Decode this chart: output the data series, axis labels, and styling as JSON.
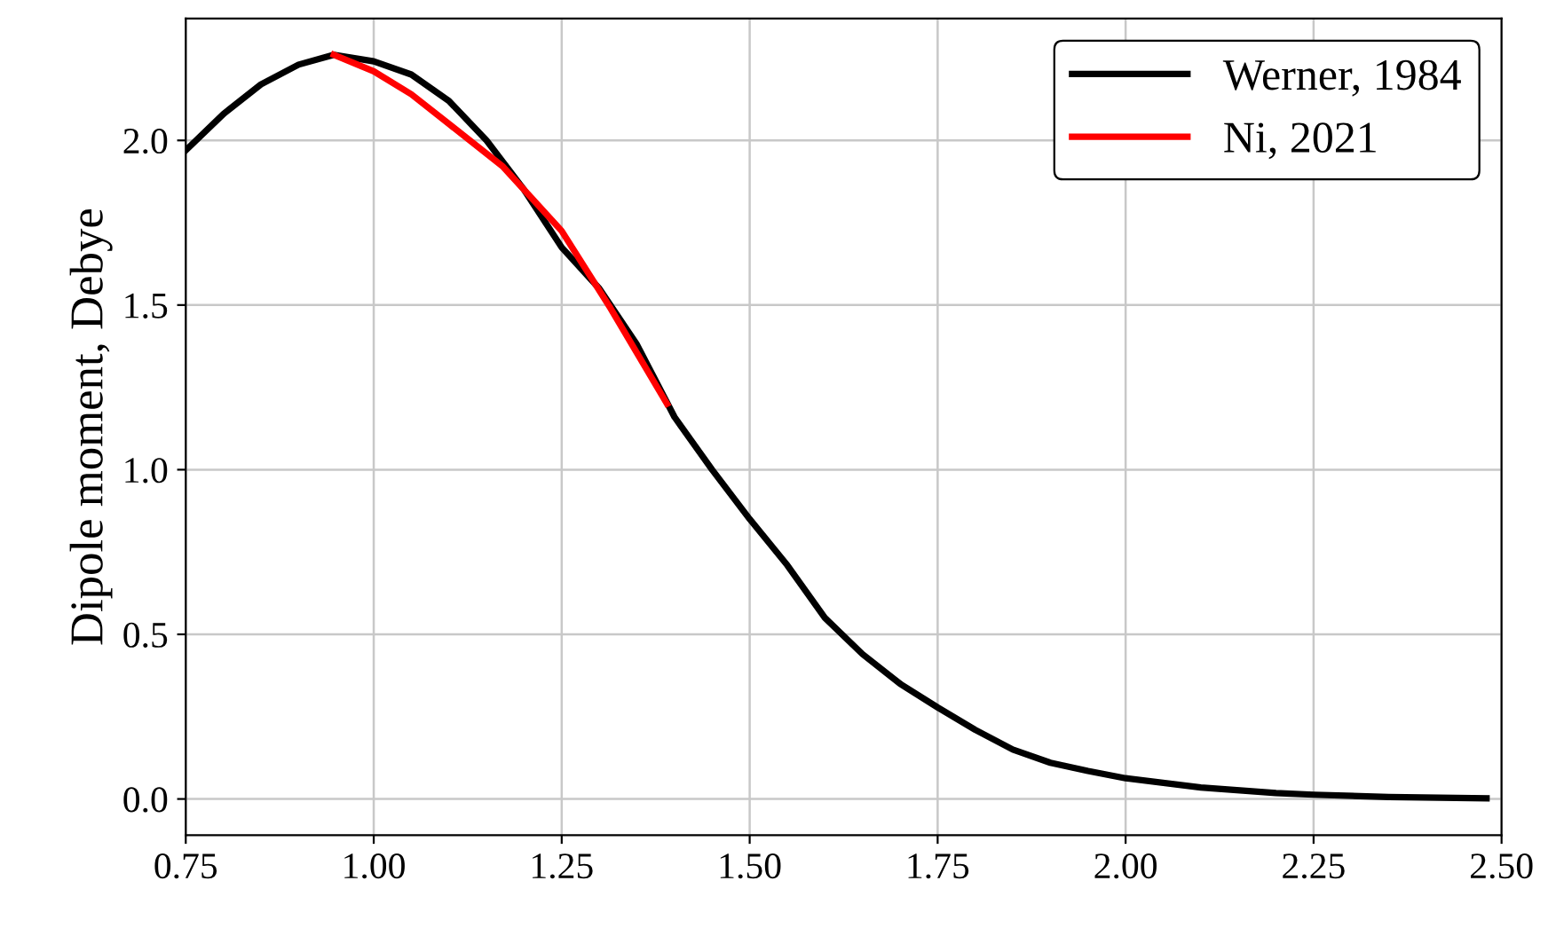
{
  "chart_data": {
    "type": "line",
    "ylabel": "Dipole moment, Debye",
    "xlim": [
      0.75,
      2.5
    ],
    "xticks": [
      {
        "value": 0.75,
        "label": "0.75"
      },
      {
        "value": 1.0,
        "label": "1.00"
      },
      {
        "value": 1.25,
        "label": "1.25"
      },
      {
        "value": 1.5,
        "label": "1.50"
      },
      {
        "value": 1.75,
        "label": "1.75"
      },
      {
        "value": 2.0,
        "label": "2.00"
      },
      {
        "value": 2.25,
        "label": "2.25"
      },
      {
        "value": 2.5,
        "label": "2.50"
      }
    ],
    "ylim": [
      -0.11,
      2.37
    ],
    "yticks": [
      {
        "value": 0,
        "label": "0.0"
      },
      {
        "value": 0.5,
        "label": "0.5"
      },
      {
        "value": 1.0,
        "label": "1.0"
      },
      {
        "value": 1.5,
        "label": "1.5"
      },
      {
        "value": 2.0,
        "label": "2.0"
      }
    ],
    "grid": true,
    "legend": "top right",
    "marker": "none",
    "line_style": "solid",
    "series": [
      {
        "name": "Werner, 1984",
        "color": "#000000",
        "x": [
          0.75,
          0.8,
          0.85,
          0.9,
          0.947,
          1.0,
          1.05,
          1.1,
          1.15,
          1.2,
          1.25,
          1.3,
          1.35,
          1.4,
          1.45,
          1.5,
          1.55,
          1.6,
          1.65,
          1.7,
          1.75,
          1.8,
          1.85,
          1.9,
          1.95,
          2.0,
          2.1,
          2.2,
          2.25,
          2.35,
          2.48
        ],
        "values": [
          1.97,
          2.08,
          2.17,
          2.23,
          2.26,
          2.24,
          2.2,
          2.12,
          2.0,
          1.85,
          1.675,
          1.55,
          1.38,
          1.16,
          1.0,
          0.85,
          0.71,
          0.55,
          0.44,
          0.35,
          0.278,
          0.21,
          0.15,
          0.11,
          0.085,
          0.063,
          0.035,
          0.018,
          0.013,
          0.006,
          0.002
        ]
      },
      {
        "name": "Ni, 2021",
        "color": "#ff0000",
        "x": [
          0.947,
          1.0,
          1.05,
          1.1,
          1.172,
          1.25,
          1.315,
          1.39
        ],
        "values": [
          2.26,
          2.21,
          2.14,
          2.05,
          1.92,
          1.725,
          1.49,
          1.2
        ]
      }
    ]
  }
}
